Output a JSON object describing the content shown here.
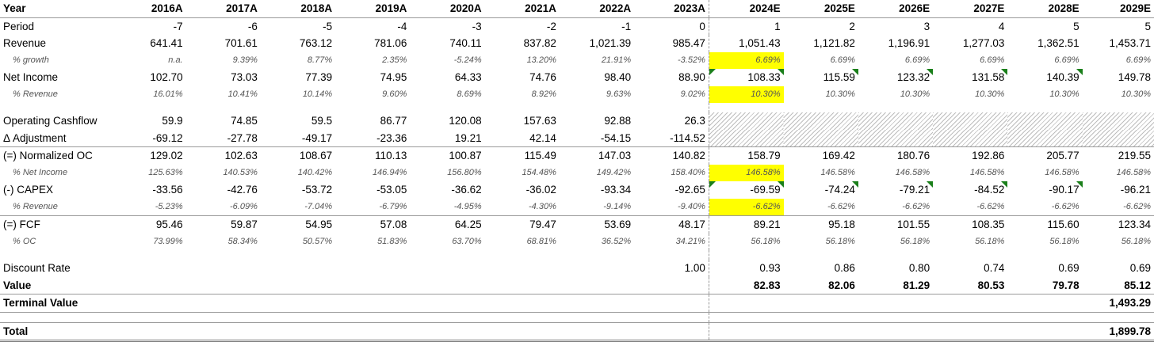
{
  "columns": [
    "2016A",
    "2017A",
    "2018A",
    "2019A",
    "2020A",
    "2021A",
    "2022A",
    "2023A",
    "2024E",
    "2025E",
    "2026E",
    "2027E",
    "2028E",
    "2029E"
  ],
  "labels": {
    "year": "Year",
    "period": "Period",
    "revenue": "Revenue",
    "growth": "% growth",
    "net_income": "Net Income",
    "ni_rev": "% Revenue",
    "ocf": "Operating Cashflow",
    "adjustment": "Δ Adjustment",
    "norm_oc": "(=) Normalized OC",
    "oc_ni": "% Net Income",
    "capex": "(-) CAPEX",
    "capex_rev": "% Revenue",
    "fcf": "(=) FCF",
    "fcf_oc": "% OC",
    "discount": "Discount Rate",
    "value": "Value",
    "terminal": "Terminal Value",
    "total": "Total"
  },
  "rows": {
    "period": [
      "-7",
      "-6",
      "-5",
      "-4",
      "-3",
      "-2",
      "-1",
      "0",
      "1",
      "2",
      "3",
      "4",
      "5",
      "5"
    ],
    "revenue": [
      "641.41",
      "701.61",
      "763.12",
      "781.06",
      "740.11",
      "837.82",
      "1,021.39",
      "985.47",
      "1,051.43",
      "1,121.82",
      "1,196.91",
      "1,277.03",
      "1,362.51",
      "1,453.71"
    ],
    "growth": [
      "n.a.",
      "9.39%",
      "8.77%",
      "2.35%",
      "-5.24%",
      "13.20%",
      "21.91%",
      "-3.52%",
      "6.69%",
      "6.69%",
      "6.69%",
      "6.69%",
      "6.69%",
      "6.69%"
    ],
    "net_income": [
      "102.70",
      "73.03",
      "77.39",
      "74.95",
      "64.33",
      "74.76",
      "98.40",
      "88.90",
      "108.33",
      "115.59",
      "123.32",
      "131.58",
      "140.39",
      "149.78"
    ],
    "ni_rev": [
      "16.01%",
      "10.41%",
      "10.14%",
      "9.60%",
      "8.69%",
      "8.92%",
      "9.63%",
      "9.02%",
      "10.30%",
      "10.30%",
      "10.30%",
      "10.30%",
      "10.30%",
      "10.30%"
    ],
    "ocf": [
      "59.9",
      "74.85",
      "59.5",
      "86.77",
      "120.08",
      "157.63",
      "92.88",
      "26.3",
      "",
      "",
      "",
      "",
      "",
      ""
    ],
    "adjustment": [
      "-69.12",
      "-27.78",
      "-49.17",
      "-23.36",
      "19.21",
      "42.14",
      "-54.15",
      "-114.52",
      "",
      "",
      "",
      "",
      "",
      ""
    ],
    "norm_oc": [
      "129.02",
      "102.63",
      "108.67",
      "110.13",
      "100.87",
      "115.49",
      "147.03",
      "140.82",
      "158.79",
      "169.42",
      "180.76",
      "192.86",
      "205.77",
      "219.55"
    ],
    "oc_ni": [
      "125.63%",
      "140.53%",
      "140.42%",
      "146.94%",
      "156.80%",
      "154.48%",
      "149.42%",
      "158.40%",
      "146.58%",
      "146.58%",
      "146.58%",
      "146.58%",
      "146.58%",
      "146.58%"
    ],
    "capex": [
      "-33.56",
      "-42.76",
      "-53.72",
      "-53.05",
      "-36.62",
      "-36.02",
      "-93.34",
      "-92.65",
      "-69.59",
      "-74.24",
      "-79.21",
      "-84.52",
      "-90.17",
      "-96.21"
    ],
    "capex_rev": [
      "-5.23%",
      "-6.09%",
      "-7.04%",
      "-6.79%",
      "-4.95%",
      "-4.30%",
      "-9.14%",
      "-9.40%",
      "-6.62%",
      "-6.62%",
      "-6.62%",
      "-6.62%",
      "-6.62%",
      "-6.62%"
    ],
    "fcf": [
      "95.46",
      "59.87",
      "54.95",
      "57.08",
      "64.25",
      "79.47",
      "53.69",
      "48.17",
      "89.21",
      "95.18",
      "101.55",
      "108.35",
      "115.60",
      "123.34"
    ],
    "fcf_oc": [
      "73.99%",
      "58.34%",
      "50.57%",
      "51.83%",
      "63.70%",
      "68.81%",
      "36.52%",
      "34.21%",
      "56.18%",
      "56.18%",
      "56.18%",
      "56.18%",
      "56.18%",
      "56.18%"
    ],
    "discount": [
      "",
      "",
      "",
      "",
      "",
      "",
      "",
      "1.00",
      "0.93",
      "0.86",
      "0.80",
      "0.74",
      "0.69",
      "0.69"
    ],
    "value": [
      "",
      "",
      "",
      "",
      "",
      "",
      "",
      "",
      "82.83",
      "82.06",
      "81.29",
      "80.53",
      "79.78",
      "85.12"
    ],
    "terminal": [
      "",
      "",
      "",
      "",
      "",
      "",
      "",
      "",
      "",
      "",
      "",
      "",
      "",
      "1,493.29"
    ],
    "total": [
      "",
      "",
      "",
      "",
      "",
      "",
      "",
      "",
      "",
      "",
      "",
      "",
      "",
      "1,899.78"
    ]
  },
  "colors": {
    "highlight": "#ffff00",
    "comment_flag": "#1a7f1a",
    "hatch": "#bdbdbd"
  }
}
